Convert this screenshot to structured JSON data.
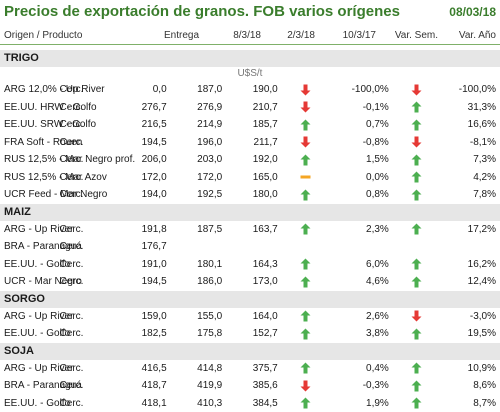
{
  "title": "Precios de exportación de granos. FOB varios orígenes",
  "date": "08/03/18",
  "columns": {
    "origen": "Origen / Producto",
    "entrega": "Entrega",
    "d1": "8/3/18",
    "d2": "2/3/18",
    "d3": "10/3/17",
    "var_sem": "Var. Sem.",
    "var_anio": "Var. Año"
  },
  "units": "U$S/t",
  "colors": {
    "title": "#3a7d2c",
    "up": "#4caf50",
    "down": "#e53935",
    "flat": "#f5a623",
    "section_bg": "#e6e6e6"
  },
  "sections": [
    {
      "name": "TRIGO",
      "rows": [
        {
          "producto": "ARG 12,0% - Up River",
          "entrega": "Cerc.",
          "v1": "0,0",
          "v2": "187,0",
          "v3": "190,0",
          "icon1": "down",
          "var_sem": "-100,0%",
          "icon2": "down",
          "var_anio": "-100,0%"
        },
        {
          "producto": "EE.UU. HRW - Golfo",
          "entrega": "Cerc.",
          "v1": "276,7",
          "v2": "276,9",
          "v3": "210,7",
          "icon1": "down",
          "var_sem": "-0,1%",
          "icon2": "up",
          "var_anio": "31,3%"
        },
        {
          "producto": "EE.UU. SRW - Golfo",
          "entrega": "Cerc.",
          "v1": "216,5",
          "v2": "214,9",
          "v3": "185,7",
          "icon1": "up",
          "var_sem": "0,7%",
          "icon2": "up",
          "var_anio": "16,6%"
        },
        {
          "producto": "FRA Soft - Rouen",
          "entrega": "Cerc.",
          "v1": "194,5",
          "v2": "196,0",
          "v3": "211,7",
          "icon1": "down",
          "var_sem": "-0,8%",
          "icon2": "down",
          "var_anio": "-8,1%"
        },
        {
          "producto": "RUS 12,5% - Mar Negro prof.",
          "entrega": "Cerc.",
          "v1": "206,0",
          "v2": "203,0",
          "v3": "192,0",
          "icon1": "up",
          "var_sem": "1,5%",
          "icon2": "up",
          "var_anio": "7,3%"
        },
        {
          "producto": "RUS 12,5% - Mar Azov",
          "entrega": "Cerc.",
          "v1": "172,0",
          "v2": "172,0",
          "v3": "165,0",
          "icon1": "flat",
          "var_sem": "0,0%",
          "icon2": "up",
          "var_anio": "4,2%"
        },
        {
          "producto": "UCR Feed - Mar Negro",
          "entrega": "Cerc.",
          "v1": "194,0",
          "v2": "192,5",
          "v3": "180,0",
          "icon1": "up",
          "var_sem": "0,8%",
          "icon2": "up",
          "var_anio": "7,8%"
        }
      ]
    },
    {
      "name": "MAIZ",
      "rows": [
        {
          "producto": "ARG - Up River",
          "entrega": "Cerc.",
          "v1": "191,8",
          "v2": "187,5",
          "v3": "163,7",
          "icon1": "up",
          "var_sem": "2,3%",
          "icon2": "up",
          "var_anio": "17,2%"
        },
        {
          "producto": "BRA - Paranaguá",
          "entrega": "Cerc.",
          "v1": "176,7",
          "v2": "",
          "v3": "",
          "icon1": "",
          "var_sem": "",
          "icon2": "",
          "var_anio": ""
        },
        {
          "producto": "EE.UU. - Golfo",
          "entrega": "Cerc.",
          "v1": "191,0",
          "v2": "180,1",
          "v3": "164,3",
          "icon1": "up",
          "var_sem": "6,0%",
          "icon2": "up",
          "var_anio": "16,2%"
        },
        {
          "producto": "UCR - Mar Negro",
          "entrega": "Cerc.",
          "v1": "194,5",
          "v2": "186,0",
          "v3": "173,0",
          "icon1": "up",
          "var_sem": "4,6%",
          "icon2": "up",
          "var_anio": "12,4%"
        }
      ]
    },
    {
      "name": "SORGO",
      "rows": [
        {
          "producto": "ARG - Up River",
          "entrega": "Cerc.",
          "v1": "159,0",
          "v2": "155,0",
          "v3": "164,0",
          "icon1": "up",
          "var_sem": "2,6%",
          "icon2": "down",
          "var_anio": "-3,0%"
        },
        {
          "producto": "EE.UU. - Golfo",
          "entrega": "Cerc.",
          "v1": "182,5",
          "v2": "175,8",
          "v3": "152,7",
          "icon1": "up",
          "var_sem": "3,8%",
          "icon2": "up",
          "var_anio": "19,5%"
        }
      ]
    },
    {
      "name": "SOJA",
      "rows": [
        {
          "producto": "ARG - Up River",
          "entrega": "Cerc.",
          "v1": "416,5",
          "v2": "414,8",
          "v3": "375,7",
          "icon1": "up",
          "var_sem": "0,4%",
          "icon2": "up",
          "var_anio": "10,9%"
        },
        {
          "producto": "BRA - Paranaguá",
          "entrega": "Cerc.",
          "v1": "418,7",
          "v2": "419,9",
          "v3": "385,6",
          "icon1": "down",
          "var_sem": "-0,3%",
          "icon2": "up",
          "var_anio": "8,6%"
        },
        {
          "producto": "EE.UU. - Golfo",
          "entrega": "Cerc.",
          "v1": "418,1",
          "v2": "410,3",
          "v3": "384,5",
          "icon1": "up",
          "var_sem": "1,9%",
          "icon2": "up",
          "var_anio": "8,7%"
        }
      ]
    }
  ]
}
